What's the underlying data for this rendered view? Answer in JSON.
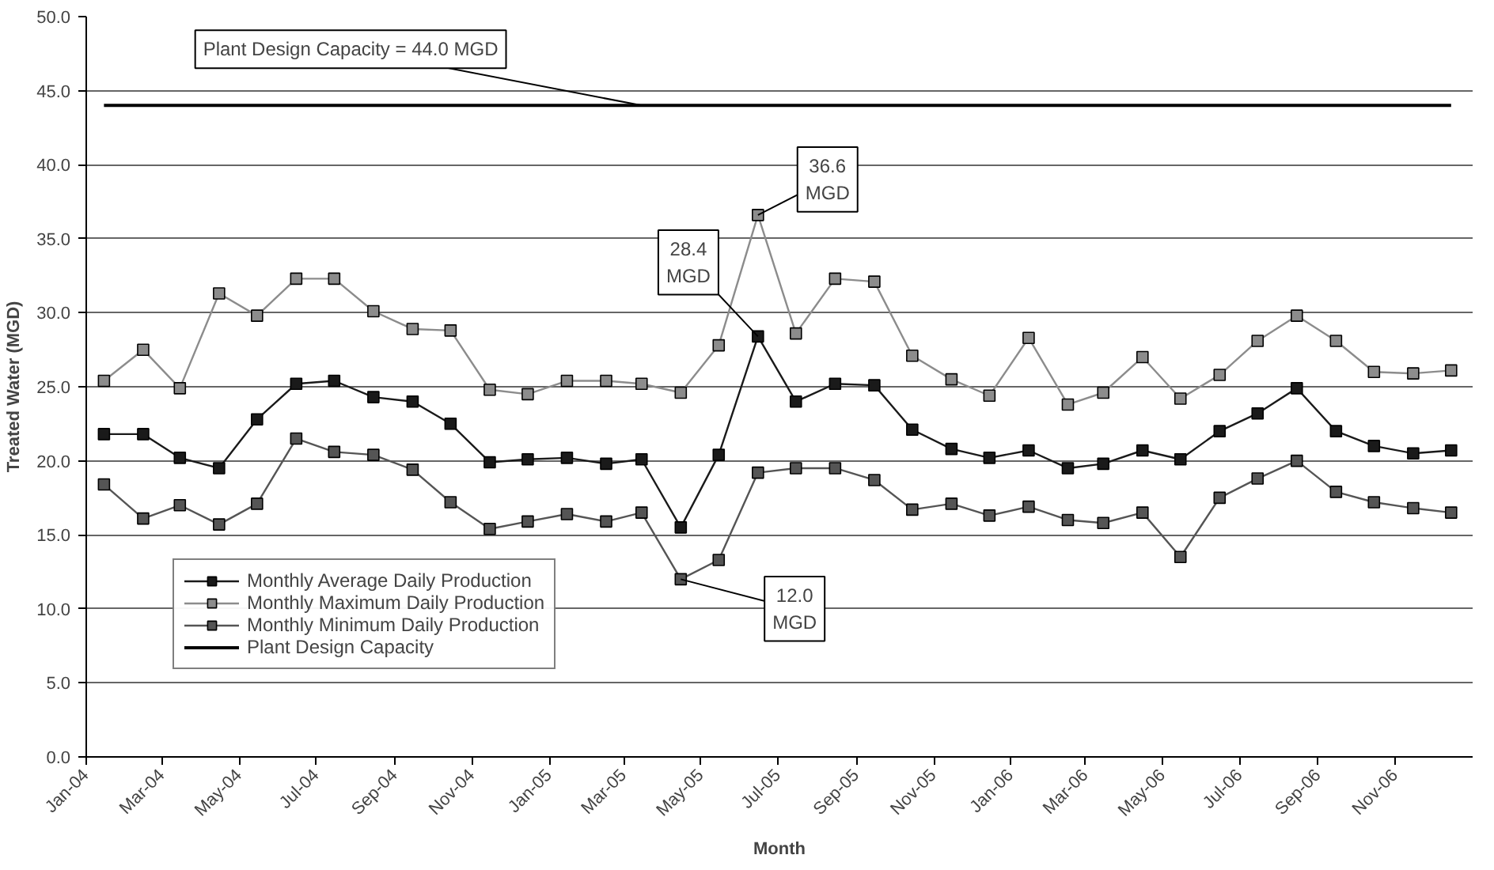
{
  "chart_data": {
    "type": "line",
    "xlabel": "Month",
    "ylabel": "Treated Water (MGD)",
    "x": [
      "2004-01-15",
      "2004-02-15",
      "2004-03-15",
      "2004-04-15",
      "2004-05-15",
      "2004-06-15",
      "2004-07-15",
      "2004-08-15",
      "2004-09-15",
      "2004-10-15",
      "2004-11-15",
      "2004-12-15",
      "2005-01-15",
      "2005-02-15",
      "2005-03-15",
      "2005-04-15",
      "2005-05-15",
      "2005-06-15",
      "2005-07-15",
      "2005-08-15",
      "2005-09-15",
      "2005-10-15",
      "2005-11-15",
      "2005-12-15",
      "2006-01-15",
      "2006-02-15",
      "2006-03-15",
      "2006-04-15",
      "2006-05-15",
      "2006-06-15",
      "2006-07-15",
      "2006-08-15",
      "2006-09-15",
      "2006-10-15",
      "2006-11-15",
      "2006-12-15"
    ],
    "series": [
      {
        "name": "Monthly Average Daily Production",
        "color": "#1a1a1a",
        "values": [
          21.8,
          21.8,
          20.2,
          19.5,
          22.8,
          25.2,
          25.4,
          24.3,
          24.0,
          22.5,
          19.9,
          20.1,
          20.2,
          19.8,
          20.1,
          15.5,
          20.4,
          28.4,
          24.0,
          25.2,
          25.1,
          22.1,
          20.8,
          20.2,
          20.7,
          19.5,
          19.8,
          20.7,
          20.1,
          22.0,
          23.2,
          24.9,
          22.0,
          21.0,
          20.5,
          20.7
        ]
      },
      {
        "name": "Monthly Maximum Daily Production",
        "color": "#8c8c8c",
        "values": [
          25.4,
          27.5,
          24.9,
          31.3,
          29.8,
          32.3,
          32.3,
          30.1,
          28.9,
          28.8,
          24.8,
          24.5,
          25.4,
          25.4,
          25.2,
          24.6,
          27.8,
          36.6,
          28.6,
          32.3,
          32.1,
          27.1,
          25.5,
          24.4,
          28.3,
          23.8,
          24.6,
          27.0,
          24.2,
          25.8,
          28.1,
          29.8,
          28.1,
          26.0,
          25.9,
          26.1
        ]
      },
      {
        "name": "Monthly Minimum Daily Production",
        "color": "#555555",
        "values": [
          18.4,
          16.1,
          17.0,
          15.7,
          17.1,
          21.5,
          20.6,
          20.4,
          19.4,
          17.2,
          15.4,
          15.9,
          16.4,
          15.9,
          16.5,
          12.0,
          13.3,
          19.2,
          19.5,
          19.5,
          18.7,
          16.7,
          17.1,
          16.3,
          16.9,
          16.0,
          15.8,
          16.5,
          13.5,
          17.5,
          18.8,
          20.0,
          17.9,
          17.2,
          16.8,
          16.5
        ]
      },
      {
        "name": "Plant Design Capacity",
        "color": "#000000",
        "marker": "none",
        "values": [
          44.0,
          44.0,
          44.0,
          44.0,
          44.0,
          44.0,
          44.0,
          44.0,
          44.0,
          44.0,
          44.0,
          44.0,
          44.0,
          44.0,
          44.0,
          44.0,
          44.0,
          44.0,
          44.0,
          44.0,
          44.0,
          44.0,
          44.0,
          44.0,
          44.0,
          44.0,
          44.0,
          44.0,
          44.0,
          44.0,
          44.0,
          44.0,
          44.0,
          44.0,
          44.0,
          44.0
        ]
      }
    ],
    "marker": "square",
    "line_style": "solid",
    "grid": "y",
    "legend": "bottom left",
    "ylim": [
      0,
      50
    ],
    "yticks": [
      {
        "value": 0,
        "label": "0.0"
      },
      {
        "value": 5,
        "label": "5.0"
      },
      {
        "value": 10,
        "label": "10.0"
      },
      {
        "value": 15,
        "label": "15.0"
      },
      {
        "value": 20,
        "label": "20.0"
      },
      {
        "value": 25,
        "label": "25.0"
      },
      {
        "value": 30,
        "label": "30.0"
      },
      {
        "value": 35,
        "label": "35.0"
      },
      {
        "value": 40,
        "label": "40.0"
      },
      {
        "value": 45,
        "label": "45.0"
      },
      {
        "value": 50,
        "label": "50.0"
      }
    ],
    "xlim": [
      "2004-01-01",
      "2007-01-01"
    ],
    "xticks": [
      {
        "value": "2004-01-01",
        "label": "Jan-04"
      },
      {
        "value": "2004-03-01",
        "label": "Mar-04"
      },
      {
        "value": "2004-05-01",
        "label": "May-04"
      },
      {
        "value": "2004-07-01",
        "label": "Jul-04"
      },
      {
        "value": "2004-09-01",
        "label": "Sep-04"
      },
      {
        "value": "2004-11-01",
        "label": "Nov-04"
      },
      {
        "value": "2005-01-01",
        "label": "Jan-05"
      },
      {
        "value": "2005-03-01",
        "label": "Mar-05"
      },
      {
        "value": "2005-05-01",
        "label": "May-05"
      },
      {
        "value": "2005-07-01",
        "label": "Jul-05"
      },
      {
        "value": "2005-09-01",
        "label": "Sep-05"
      },
      {
        "value": "2005-11-01",
        "label": "Nov-05"
      },
      {
        "value": "2006-01-01",
        "label": "Jan-06"
      },
      {
        "value": "2006-03-01",
        "label": "Mar-06"
      },
      {
        "value": "2006-05-01",
        "label": "May-06"
      },
      {
        "value": "2006-07-01",
        "label": "Jul-06"
      },
      {
        "value": "2006-09-01",
        "label": "Sep-06"
      },
      {
        "value": "2006-11-01",
        "label": "Nov-06"
      }
    ],
    "annotations": [
      {
        "text": "Plant Design Capacity = 44.0 MGD",
        "x": "2005-03-15",
        "y": 44.0
      },
      {
        "text": "36.6\nMGD",
        "x": "2005-06-15",
        "y": 36.6
      },
      {
        "text": "28.4\nMGD",
        "x": "2005-06-15",
        "y": 28.4
      },
      {
        "text": "12.0\nMGD",
        "x": "2005-04-15",
        "y": 12.0
      }
    ]
  }
}
